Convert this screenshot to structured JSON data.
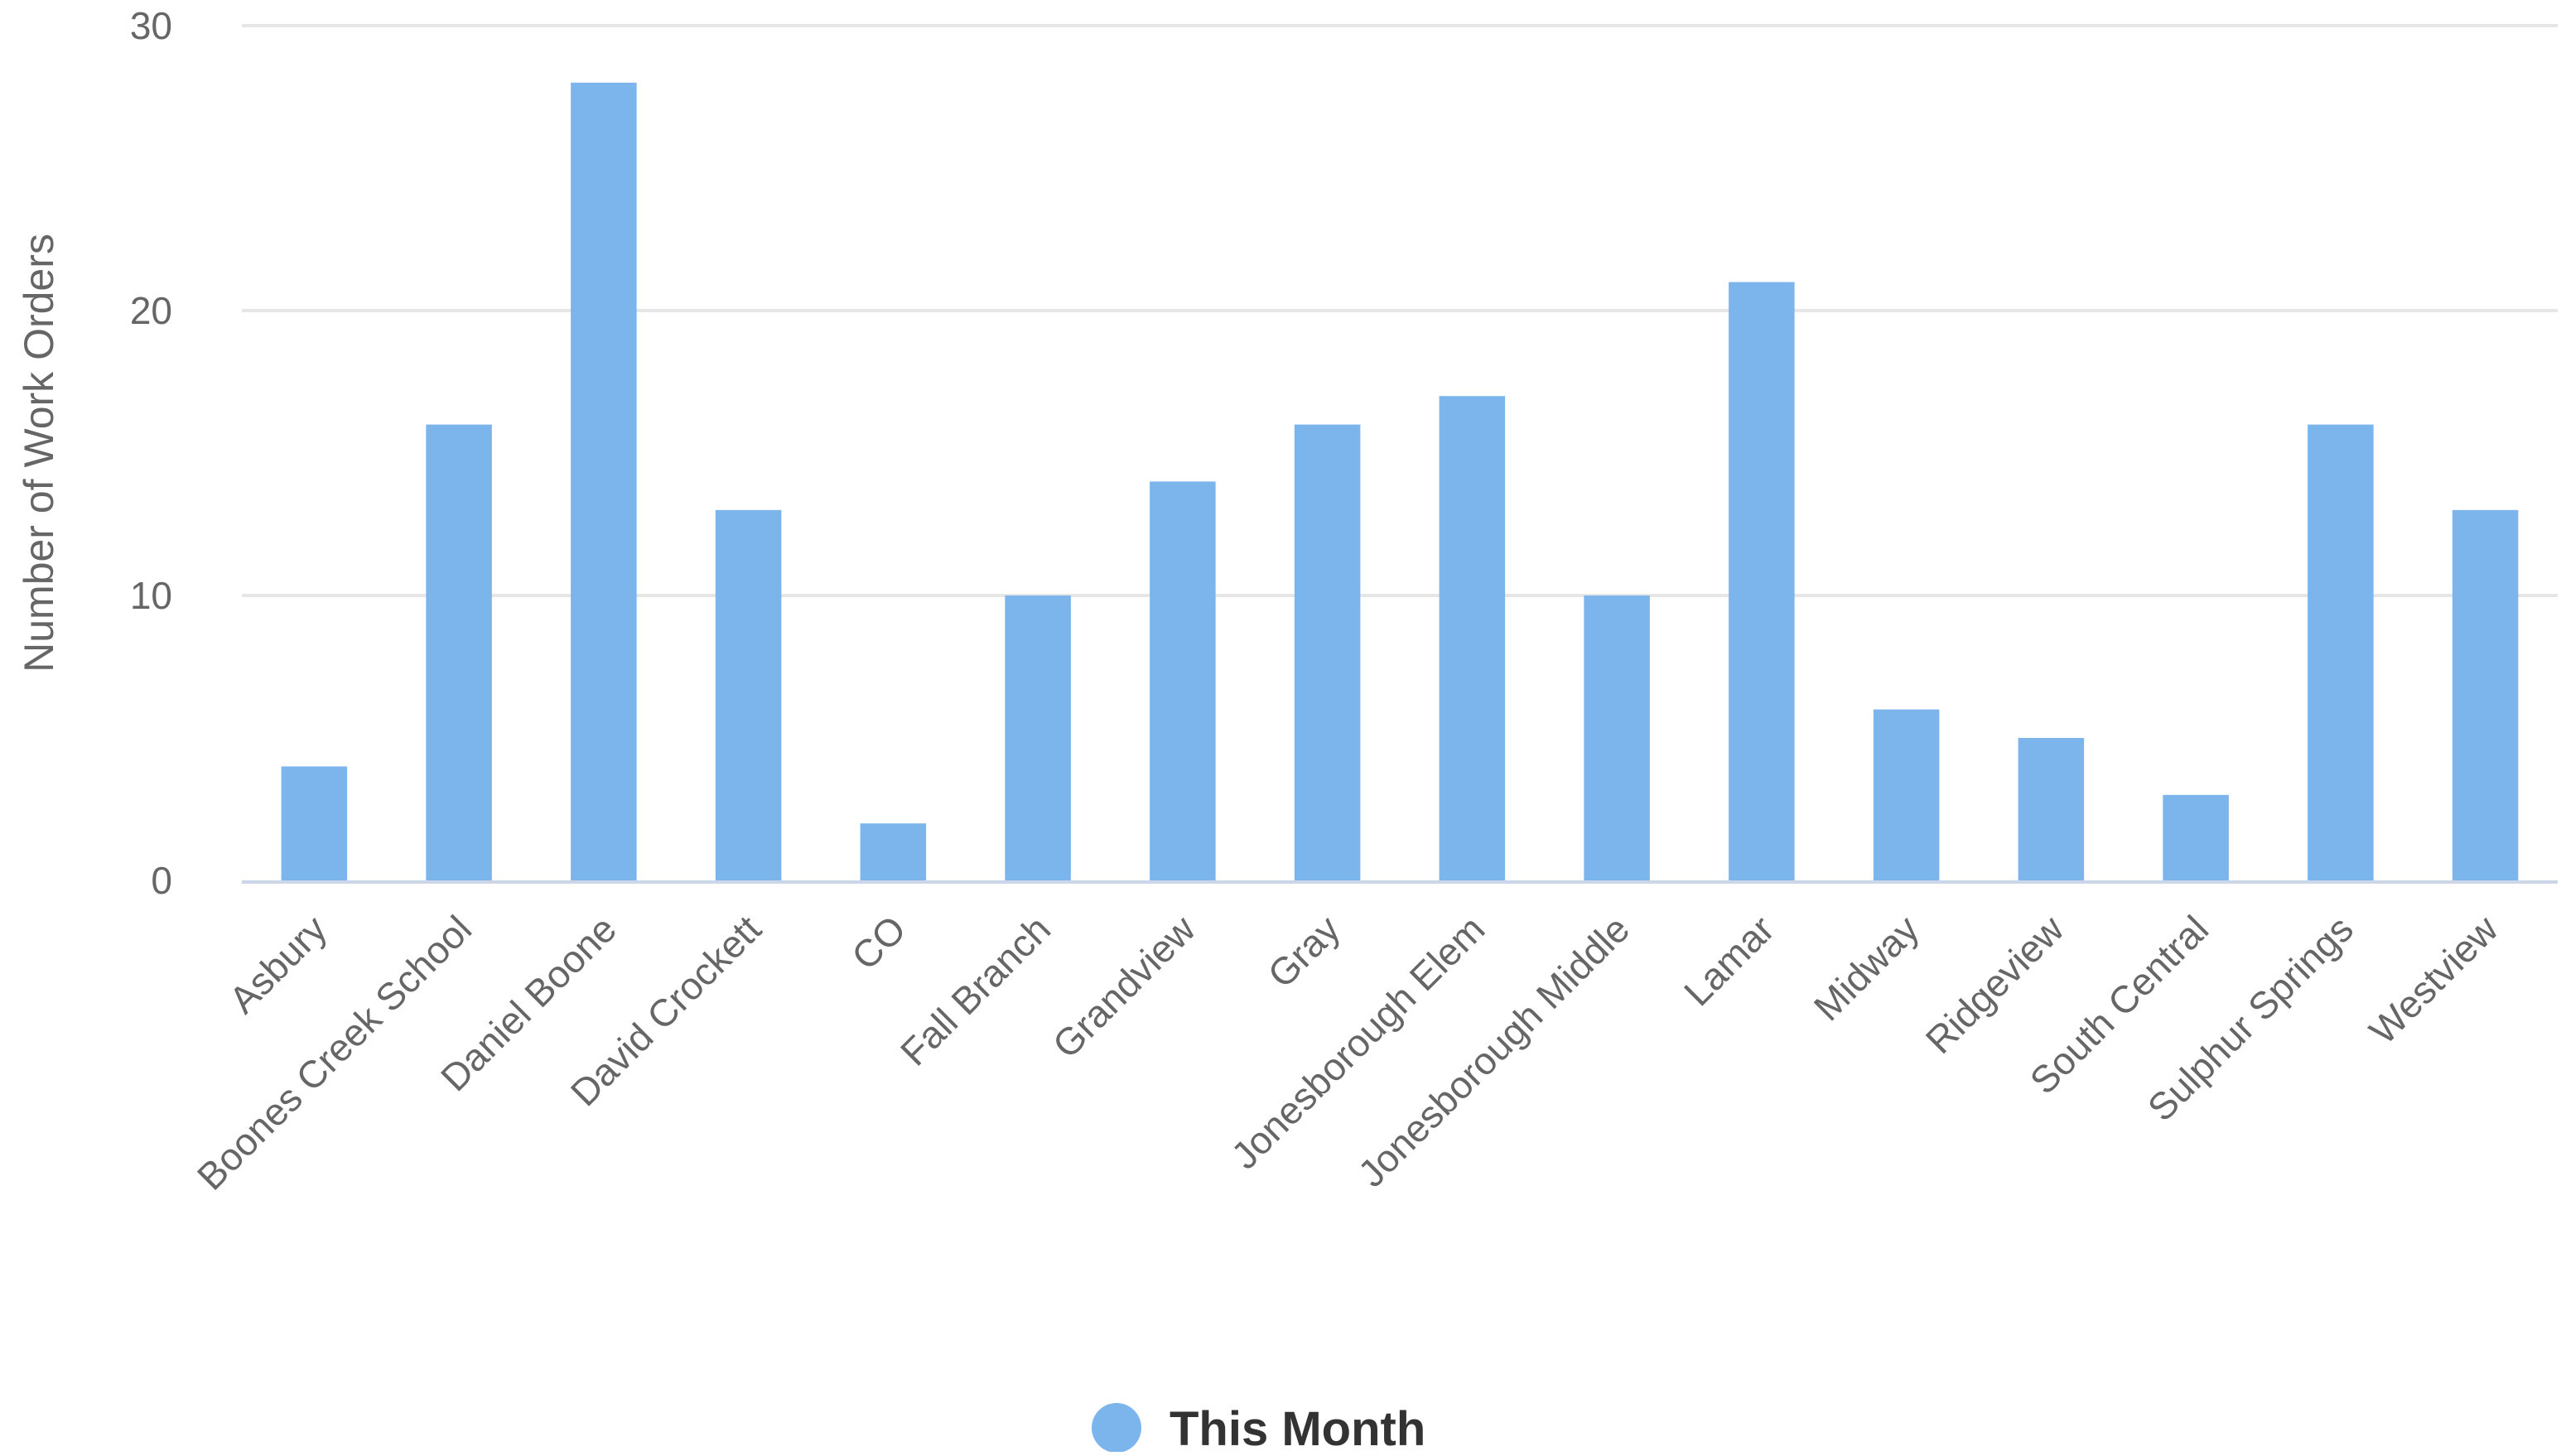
{
  "chart_data": {
    "type": "bar",
    "title": "",
    "xlabel": "",
    "ylabel": "Number of Work Orders",
    "ylim": [
      0,
      30
    ],
    "yticks": [
      0,
      10,
      20,
      30
    ],
    "grid": true,
    "legend_position": "bottom-center",
    "categories": [
      "Asbury",
      "Boones Creek School",
      "Daniel Boone",
      "David Crockett",
      "CO",
      "Fall Branch",
      "Grandview",
      "Gray",
      "Jonesborough Elem",
      "Jonesborough Middle",
      "Lamar",
      "Midway",
      "Ridgeview",
      "South Central",
      "Sulphur Springs",
      "Westview"
    ],
    "series": [
      {
        "name": "This Month",
        "color": "#7cb5ec",
        "values": [
          4,
          16,
          28,
          13,
          2,
          10,
          14,
          16,
          17,
          10,
          21,
          6,
          5,
          3,
          16,
          13
        ]
      }
    ]
  },
  "colors": {
    "bar": "#7cb5ec",
    "grid": "#e6e6e6",
    "axis_line": "#ccd6eb",
    "text": "#666666",
    "legend_text": "#333333"
  }
}
